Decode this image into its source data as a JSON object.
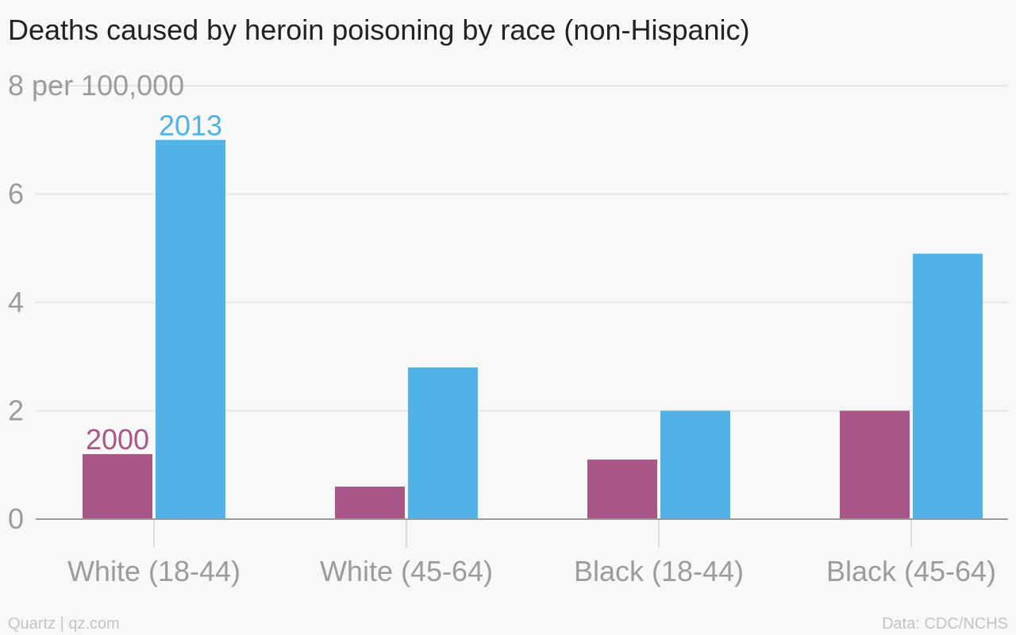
{
  "chart_data": {
    "type": "bar",
    "title": "Deaths caused by heroin poisoning by race (non-Hispanic)",
    "categories": [
      "White (18-44)",
      "White (45-64)",
      "Black (18-44)",
      "Black (45-64)"
    ],
    "series": [
      {
        "name": "2000",
        "values": [
          1.2,
          0.6,
          1.1,
          2.0
        ],
        "color": "#a85786"
      },
      {
        "name": "2013",
        "values": [
          7.0,
          2.8,
          2.0,
          4.9
        ],
        "color": "#51b2e5"
      }
    ],
    "ylim": [
      0,
      8
    ],
    "yticks": [
      0,
      2,
      4,
      6,
      8
    ],
    "ytick_labels": [
      "0",
      "2",
      "4",
      "6",
      "8 per 100,000"
    ],
    "grid": true,
    "legend": "series names labeled on first category bars"
  },
  "footer": {
    "source_left": "Quartz | qz.com",
    "source_right": "Data: CDC/NCHS"
  },
  "colors": {
    "background": "#f8f8f8",
    "gridline": "#e6e6e6",
    "axis": "#9a9a9a",
    "tick_label": "#9c9c9c",
    "title": "#222222",
    "footer": "#c4c4c4"
  }
}
